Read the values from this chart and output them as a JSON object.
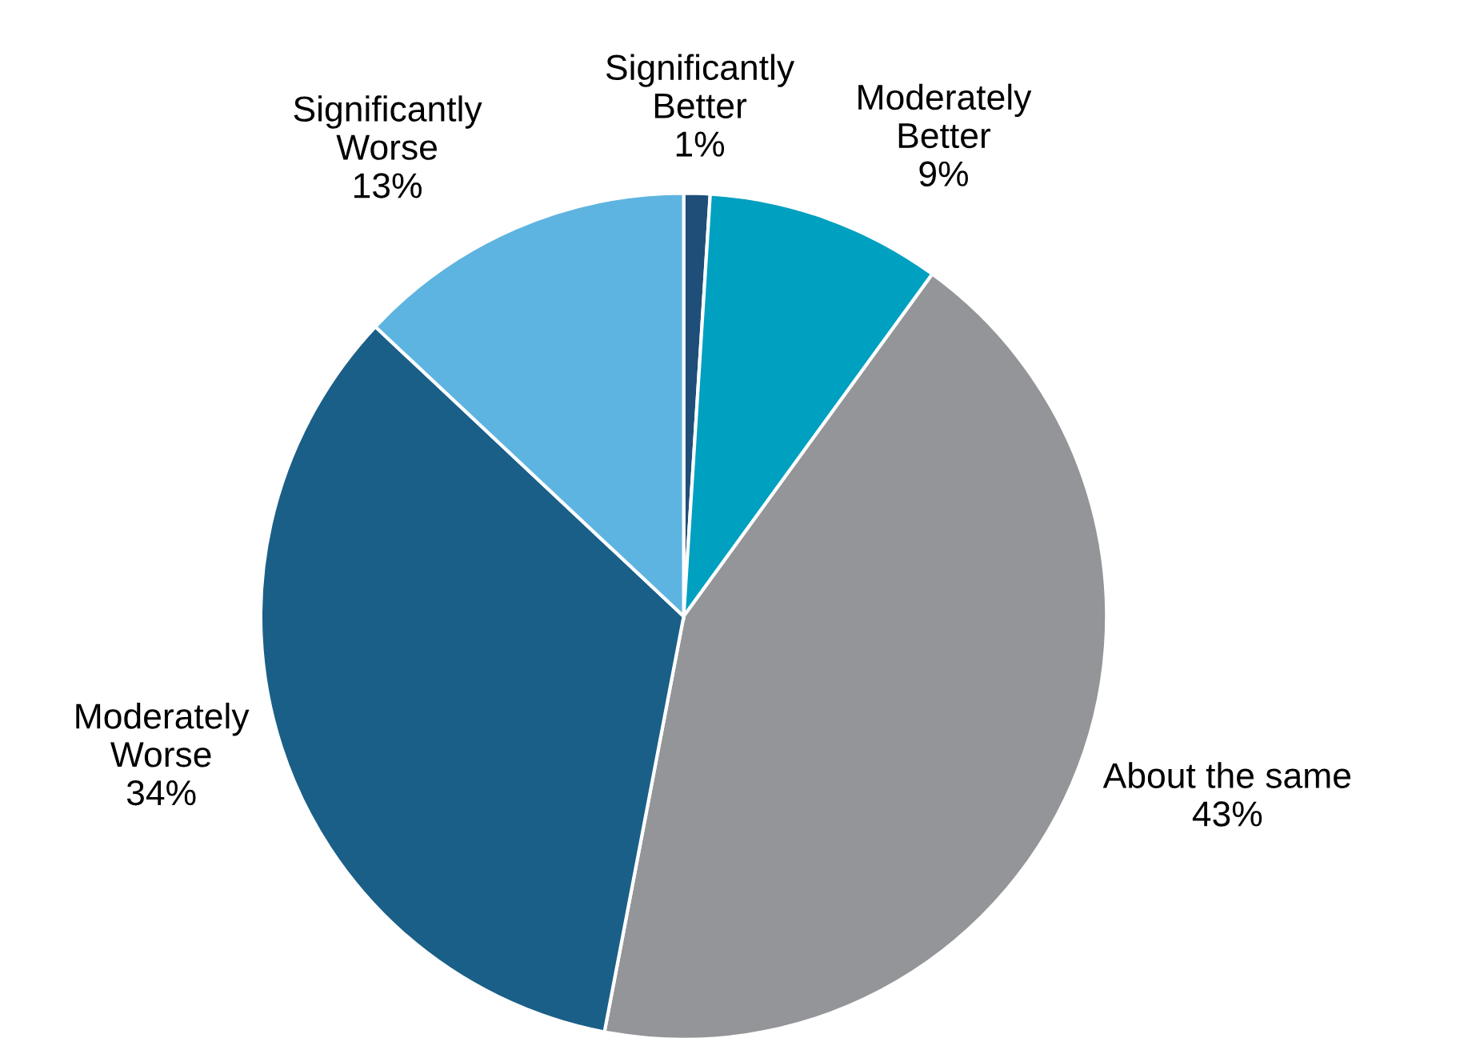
{
  "chart_data": {
    "type": "pie",
    "categories": [
      "Significantly Better",
      "Moderately Better",
      "About the same",
      "Moderately Worse",
      "Significantly Worse"
    ],
    "values": [
      1,
      9,
      43,
      34,
      13
    ],
    "value_labels": [
      "1%",
      "9%",
      "43%",
      "34%",
      "13%"
    ],
    "colors": [
      "#1f4e79",
      "#00a0c0",
      "#939598",
      "#1a5f88",
      "#5eb4e0"
    ]
  }
}
